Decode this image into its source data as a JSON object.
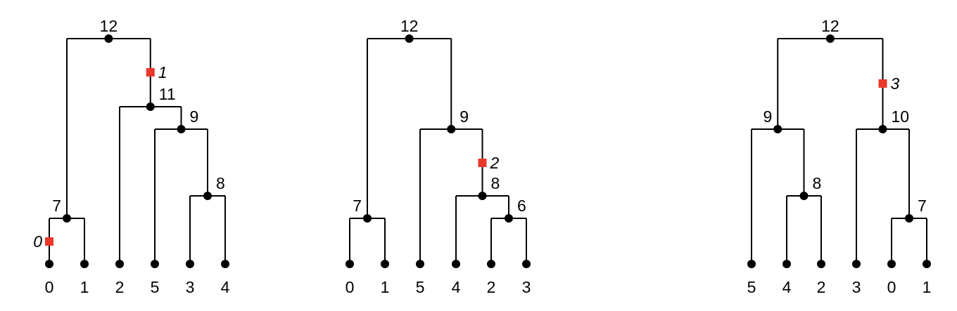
{
  "colors": {
    "edge": "#000000",
    "node": "#000000",
    "mutation": "#e8382a"
  },
  "trees": [
    {
      "root_label": "12",
      "leaves": [
        {
          "id": "l0",
          "label": "0"
        },
        {
          "id": "l1",
          "label": "1"
        },
        {
          "id": "l2",
          "label": "2"
        },
        {
          "id": "l5",
          "label": "5"
        },
        {
          "id": "l3",
          "label": "3"
        },
        {
          "id": "l4",
          "label": "4"
        }
      ],
      "internal_nodes": [
        {
          "id": "n7",
          "label": "7",
          "children": [
            "l0",
            "l1"
          ]
        },
        {
          "id": "n8",
          "label": "8",
          "children": [
            "l3",
            "l4"
          ]
        },
        {
          "id": "n9",
          "label": "9",
          "children": [
            "l5",
            "n8"
          ]
        },
        {
          "id": "n11",
          "label": "11",
          "children": [
            "l2",
            "n9"
          ]
        },
        {
          "id": "n12",
          "label": "12",
          "children": [
            "n7",
            "n11"
          ]
        }
      ],
      "mutations": [
        {
          "label": "0",
          "on_edge_to": "l0"
        },
        {
          "label": "1",
          "on_edge_to": "n11"
        }
      ]
    },
    {
      "root_label": "12",
      "leaves": [
        {
          "id": "l0",
          "label": "0"
        },
        {
          "id": "l1",
          "label": "1"
        },
        {
          "id": "l5",
          "label": "5"
        },
        {
          "id": "l4",
          "label": "4"
        },
        {
          "id": "l2",
          "label": "2"
        },
        {
          "id": "l3",
          "label": "3"
        }
      ],
      "internal_nodes": [
        {
          "id": "n7",
          "label": "7",
          "children": [
            "l0",
            "l1"
          ]
        },
        {
          "id": "n6",
          "label": "6",
          "children": [
            "l2",
            "l3"
          ]
        },
        {
          "id": "n8",
          "label": "8",
          "children": [
            "l4",
            "n6"
          ]
        },
        {
          "id": "n9",
          "label": "9",
          "children": [
            "l5",
            "n8"
          ]
        },
        {
          "id": "n12",
          "label": "12",
          "children": [
            "n7",
            "n9"
          ]
        }
      ],
      "mutations": [
        {
          "label": "2",
          "on_edge_to": "n8"
        }
      ]
    },
    {
      "root_label": "12",
      "leaves": [
        {
          "id": "l5",
          "label": "5"
        },
        {
          "id": "l4",
          "label": "4"
        },
        {
          "id": "l2",
          "label": "2"
        },
        {
          "id": "l3",
          "label": "3"
        },
        {
          "id": "l0",
          "label": "0"
        },
        {
          "id": "l1",
          "label": "1"
        }
      ],
      "internal_nodes": [
        {
          "id": "n8",
          "label": "8",
          "children": [
            "l4",
            "l2"
          ]
        },
        {
          "id": "n9",
          "label": "9",
          "children": [
            "l5",
            "n8"
          ]
        },
        {
          "id": "n7",
          "label": "7",
          "children": [
            "l0",
            "l1"
          ]
        },
        {
          "id": "n10",
          "label": "10",
          "children": [
            "l3",
            "n7"
          ]
        },
        {
          "id": "n12",
          "label": "12",
          "children": [
            "n9",
            "n10"
          ]
        }
      ],
      "mutations": [
        {
          "label": "3",
          "on_edge_to": "n10"
        }
      ]
    }
  ]
}
